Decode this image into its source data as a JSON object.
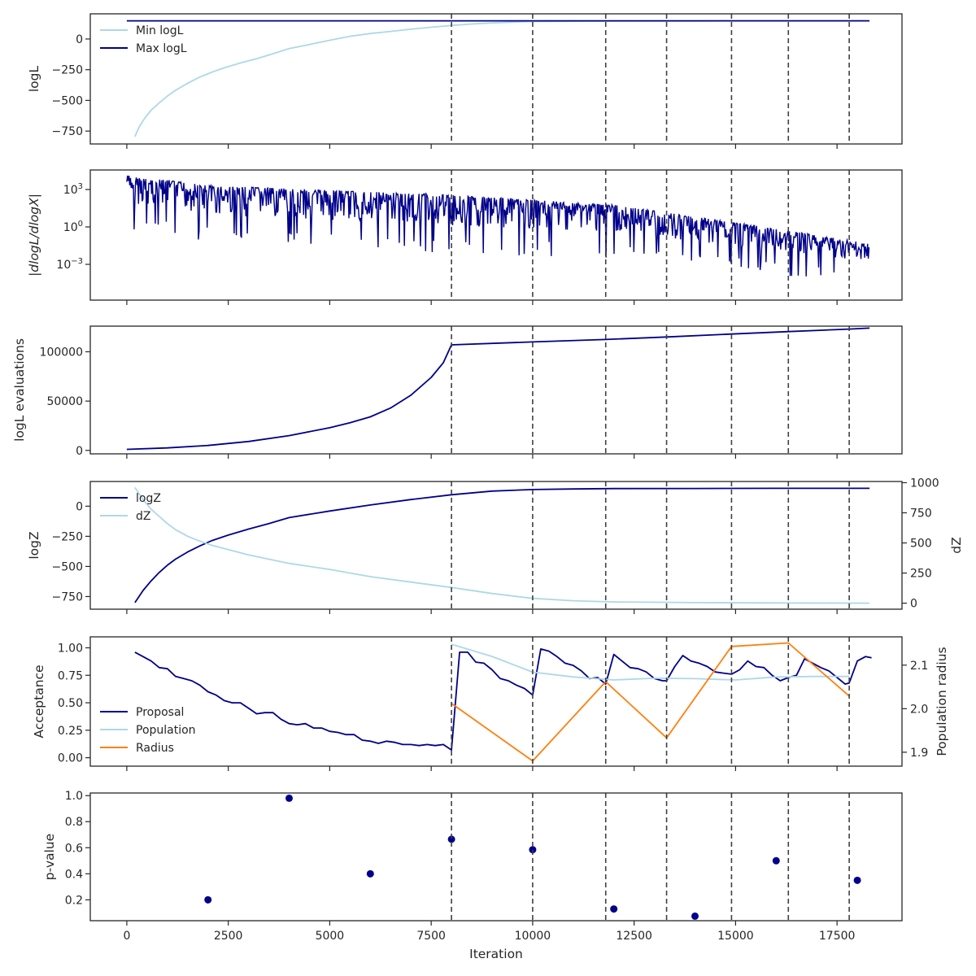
{
  "chart_data": [
    {
      "type": "line",
      "panel": "loglike",
      "ylabel": "logL",
      "xlim": [
        -900,
        19100
      ],
      "ylim": [
        -855,
        205
      ],
      "yticks": [
        0,
        -250,
        -500,
        -750
      ],
      "ytick_labels": [
        "0",
        "−250",
        "−500",
        "−750"
      ],
      "grid": false,
      "legend": "upper-left",
      "series": [
        {
          "name": "Min logL",
          "color": "#add8e6",
          "x": [
            200,
            300,
            400,
            500,
            600,
            800,
            1000,
            1200,
            1500,
            1800,
            2100,
            2400,
            2800,
            3200,
            3600,
            4000,
            4500,
            5000,
            5500,
            6000,
            6500,
            7000,
            7500,
            8000,
            8500,
            9000,
            9500,
            10000,
            11000,
            12000,
            13000,
            14000,
            15000,
            16000,
            17000,
            18300
          ],
          "y": [
            -795,
            -720,
            -665,
            -620,
            -580,
            -520,
            -465,
            -418,
            -360,
            -310,
            -270,
            -235,
            -195,
            -160,
            -120,
            -78,
            -45,
            -10,
            22,
            45,
            62,
            80,
            96,
            110,
            122,
            131,
            137,
            142,
            145,
            146,
            147,
            147,
            148,
            148,
            148,
            148
          ]
        },
        {
          "name": "Max logL",
          "color": "#00008b",
          "x": [
            0,
            1000,
            5000,
            10000,
            18300
          ],
          "y": [
            148,
            148,
            148,
            148,
            148
          ]
        }
      ]
    },
    {
      "type": "line",
      "panel": "gradient",
      "ylabel": "|dlogL/dlogX|",
      "log_scale": true,
      "xlim": [
        -900,
        19100
      ],
      "yticks": [
        1000,
        1,
        0.001
      ],
      "ytick_labels": [
        "10^3",
        "10^0",
        "10^-3"
      ],
      "grid": false,
      "series": [
        {
          "name": "",
          "color": "#00008b",
          "envelope_top": [
            [
              0,
              50000
            ],
            [
              2000,
              8000
            ],
            [
              8000,
              1500
            ],
            [
              12000,
              200
            ],
            [
              16000,
              2
            ],
            [
              18300,
              0.1
            ]
          ],
          "envelope_bottom": [
            [
              0,
              10
            ],
            [
              2000,
              1
            ],
            [
              8000,
              0.1
            ],
            [
              12000,
              0.05
            ],
            [
              16000,
              0.002
            ],
            [
              18300,
              0.0005
            ]
          ]
        }
      ]
    },
    {
      "type": "line",
      "panel": "ncall",
      "ylabel": "logL evaluations",
      "xlim": [
        -900,
        19100
      ],
      "ylim": [
        -3500,
        126000
      ],
      "yticks": [
        100000,
        50000,
        0
      ],
      "ytick_labels": [
        "100000",
        "50000",
        "0"
      ],
      "grid": false,
      "series": [
        {
          "name": "",
          "color": "#00008b",
          "x": [
            0,
            1000,
            2000,
            3000,
            4000,
            5000,
            5500,
            6000,
            6500,
            7000,
            7500,
            7800,
            8000,
            10000,
            11800,
            13300,
            14900,
            16300,
            17800,
            18300
          ],
          "y": [
            1000,
            2500,
            5000,
            9000,
            15000,
            23000,
            28000,
            34000,
            43000,
            56000,
            74000,
            89000,
            107000,
            110000,
            112500,
            115000,
            118000,
            120500,
            123000,
            124000
          ]
        }
      ]
    },
    {
      "type": "line",
      "panel": "evidence",
      "ylabel": "logZ",
      "ylabel_right": "dZ",
      "xlim": [
        -900,
        19100
      ],
      "ylim": [
        -855,
        205
      ],
      "ylim_right": [
        -50,
        1010
      ],
      "yticks": [
        0,
        -250,
        -500,
        -750
      ],
      "ytick_labels": [
        "0",
        "−250",
        "−500",
        "−750"
      ],
      "yticks_right": [
        1000,
        750,
        500,
        250,
        0
      ],
      "ytick_labels_right": [
        "1000",
        "750",
        "500",
        "250",
        "0"
      ],
      "grid": false,
      "legend": "upper-left",
      "series": [
        {
          "name": "logZ",
          "color": "#00008b",
          "axis": "left",
          "x": [
            200,
            400,
            600,
            800,
            1000,
            1200,
            1500,
            1800,
            2100,
            2500,
            3000,
            3500,
            4000,
            5000,
            6000,
            7000,
            8000,
            9000,
            10000,
            11000,
            12000,
            14000,
            16000,
            18300
          ],
          "y": [
            -800,
            -700,
            -620,
            -550,
            -490,
            -440,
            -380,
            -330,
            -285,
            -240,
            -190,
            -145,
            -95,
            -40,
            10,
            55,
            95,
            125,
            138,
            143,
            146,
            147,
            148,
            148
          ]
        },
        {
          "name": "dZ",
          "color": "#add8e6",
          "axis": "right",
          "x": [
            200,
            400,
            600,
            800,
            1000,
            1200,
            1500,
            1800,
            2100,
            2500,
            3000,
            3500,
            4000,
            5000,
            6000,
            7000,
            8000,
            9000,
            10000,
            11000,
            12000,
            14000,
            16000,
            18300
          ],
          "y": [
            960,
            860,
            780,
            720,
            660,
            610,
            555,
            515,
            480,
            445,
            400,
            365,
            330,
            280,
            220,
            175,
            130,
            80,
            40,
            20,
            10,
            5,
            2,
            0
          ]
        }
      ]
    },
    {
      "type": "line",
      "panel": "acceptance",
      "ylabel": "Acceptance",
      "ylabel_right": "Population radius",
      "xlim": [
        -900,
        19100
      ],
      "ylim": [
        -0.077,
        1.1
      ],
      "ylim_right": [
        1.868,
        2.165
      ],
      "yticks": [
        1.0,
        0.75,
        0.5,
        0.25,
        0.0
      ],
      "ytick_labels": [
        "1.00",
        "0.75",
        "0.50",
        "0.25",
        "0.00"
      ],
      "yticks_right": [
        2.1,
        2.0,
        1.9
      ],
      "ytick_labels_right": [
        "2.1",
        "2.0",
        "1.9"
      ],
      "grid": false,
      "legend": "lower-left",
      "series": [
        {
          "name": "Proposal",
          "color": "#00008b",
          "axis": "left",
          "x": [
            200,
            400,
            600,
            800,
            1000,
            1200,
            1400,
            1600,
            1800,
            2000,
            2200,
            2400,
            2600,
            2800,
            3000,
            3200,
            3400,
            3600,
            3800,
            4000,
            4200,
            4400,
            4600,
            4800,
            5000,
            5200,
            5400,
            5600,
            5800,
            6000,
            6200,
            6400,
            6600,
            6800,
            7000,
            7200,
            7400,
            7600,
            7800,
            8000,
            8200,
            8400,
            8600,
            8800,
            9000,
            9200,
            9400,
            9600,
            9800,
            10000,
            10200,
            10400,
            10600,
            10800,
            11000,
            11200,
            11400,
            11600,
            11800,
            12000,
            12200,
            12400,
            12600,
            12800,
            13000,
            13200,
            13300,
            13500,
            13700,
            13900,
            14100,
            14300,
            14500,
            14700,
            14900,
            15100,
            15300,
            15500,
            15700,
            15900,
            16100,
            16300,
            16500,
            16700,
            16900,
            17100,
            17300,
            17500,
            17700,
            17800,
            18000,
            18200,
            18350
          ],
          "y": [
            0.96,
            0.92,
            0.88,
            0.82,
            0.81,
            0.74,
            0.72,
            0.7,
            0.66,
            0.6,
            0.57,
            0.52,
            0.5,
            0.5,
            0.45,
            0.4,
            0.41,
            0.41,
            0.35,
            0.31,
            0.3,
            0.31,
            0.27,
            0.27,
            0.24,
            0.23,
            0.21,
            0.21,
            0.16,
            0.15,
            0.13,
            0.15,
            0.14,
            0.12,
            0.12,
            0.11,
            0.12,
            0.11,
            0.12,
            0.07,
            0.96,
            0.96,
            0.87,
            0.86,
            0.8,
            0.72,
            0.7,
            0.66,
            0.63,
            0.57,
            0.99,
            0.97,
            0.92,
            0.86,
            0.84,
            0.79,
            0.72,
            0.73,
            0.67,
            0.94,
            0.88,
            0.82,
            0.81,
            0.78,
            0.72,
            0.7,
            0.7,
            0.83,
            0.93,
            0.88,
            0.86,
            0.83,
            0.78,
            0.77,
            0.76,
            0.8,
            0.88,
            0.83,
            0.82,
            0.75,
            0.7,
            0.73,
            0.75,
            0.9,
            0.86,
            0.82,
            0.79,
            0.73,
            0.67,
            0.68,
            0.88,
            0.92,
            0.91
          ]
        },
        {
          "name": "Population",
          "color": "#add8e6",
          "axis": "right",
          "x": [
            8000,
            9000,
            10000,
            11000,
            12000,
            13000,
            14000,
            15000,
            16000,
            17000,
            17800
          ],
          "y": [
            2.148,
            2.12,
            2.084,
            2.073,
            2.066,
            2.07,
            2.069,
            2.066,
            2.073,
            2.074,
            2.074
          ]
        },
        {
          "name": "Radius",
          "color": "#ff7f0e",
          "axis": "right",
          "x": [
            8000,
            10000,
            11800,
            13300,
            14900,
            16300,
            17800
          ],
          "y": [
            2.012,
            1.88,
            2.062,
            1.933,
            2.143,
            2.151,
            2.029
          ]
        }
      ]
    },
    {
      "type": "scatter",
      "panel": "pvalue",
      "ylabel": "p-value",
      "xlabel": "Iteration",
      "xlim": [
        -900,
        19100
      ],
      "ylim": [
        0.04,
        1.02
      ],
      "yticks": [
        1.0,
        0.8,
        0.6,
        0.4,
        0.2
      ],
      "ytick_labels": [
        "1.0",
        "0.8",
        "0.6",
        "0.4",
        "0.2"
      ],
      "xticks": [
        0,
        2500,
        5000,
        7500,
        10000,
        12500,
        15000,
        17500
      ],
      "xtick_labels": [
        "0",
        "2500",
        "5000",
        "7500",
        "10000",
        "12500",
        "15000",
        "17500"
      ],
      "grid": false,
      "series": [
        {
          "name": "",
          "color": "#00008b",
          "x": [
            2000,
            4000,
            6000,
            8000,
            10000,
            12000,
            14000,
            16000,
            18000
          ],
          "y": [
            0.2,
            0.98,
            0.4,
            0.665,
            0.585,
            0.13,
            0.075,
            0.5,
            0.35
          ]
        }
      ]
    }
  ],
  "vlines": {
    "x": [
      8000,
      10000,
      11800,
      13300,
      14900,
      16300,
      17800
    ],
    "color": "#404040",
    "style": "dashed"
  },
  "colors": {
    "dark_blue": "#00008b",
    "light_blue": "#add8e6",
    "orange": "#ff7f0e",
    "axis": "#262626"
  }
}
